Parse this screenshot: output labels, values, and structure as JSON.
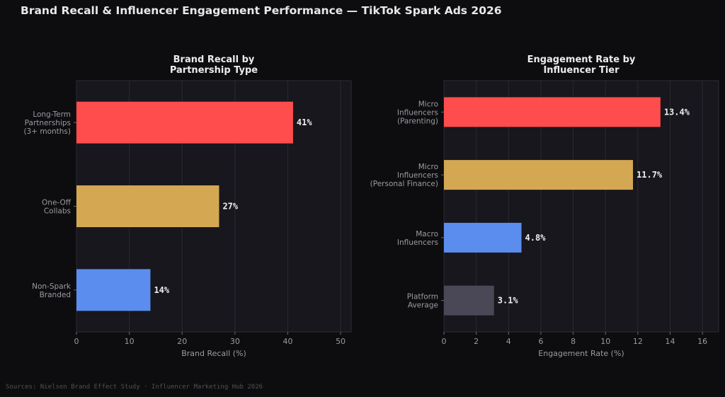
{
  "title": "Brand Recall & Influencer Engagement Performance — TikTok Spark Ads 2026",
  "footer": "Sources: Nielsen Brand Effect Study · Influencer Marketing Hub 2026",
  "chart_data": [
    {
      "type": "bar",
      "orientation": "horizontal",
      "title": [
        "Brand Recall by",
        "Partnership Type"
      ],
      "xlabel": "Brand Recall (%)",
      "ylabel": "",
      "xlim": [
        0,
        52
      ],
      "xticks": [
        0,
        10,
        20,
        30,
        40,
        50
      ],
      "grid": true,
      "categories": [
        [
          "Long-Term",
          "Partnerships",
          "(3+ months)"
        ],
        [
          "One-Off",
          "Collabs"
        ],
        [
          "Non-Spark",
          "Branded"
        ]
      ],
      "values": [
        41,
        27,
        14
      ],
      "value_labels": [
        "41%",
        "27%",
        "14%"
      ],
      "colors": [
        "#ff4c4c",
        "#d4a853",
        "#5b8def"
      ]
    },
    {
      "type": "bar",
      "orientation": "horizontal",
      "title": [
        "Engagement Rate by",
        "Influencer Tier"
      ],
      "xlabel": "Engagement Rate (%)",
      "ylabel": "",
      "xlim": [
        0,
        17
      ],
      "xticks": [
        0,
        2,
        4,
        6,
        8,
        10,
        12,
        14,
        16
      ],
      "grid": true,
      "categories": [
        [
          "Micro",
          "Influencers",
          "(Parenting)"
        ],
        [
          "Micro",
          "Influencers",
          "(Personal Finance)"
        ],
        [
          "Macro",
          "Influencers"
        ],
        [
          "Platform",
          "Average"
        ]
      ],
      "values": [
        13.4,
        11.7,
        4.8,
        3.1
      ],
      "value_labels": [
        "13.4%",
        "11.7%",
        "4.8%",
        "3.1%"
      ],
      "colors": [
        "#ff4c4c",
        "#d4a853",
        "#5b8def",
        "#4a4757"
      ]
    }
  ]
}
